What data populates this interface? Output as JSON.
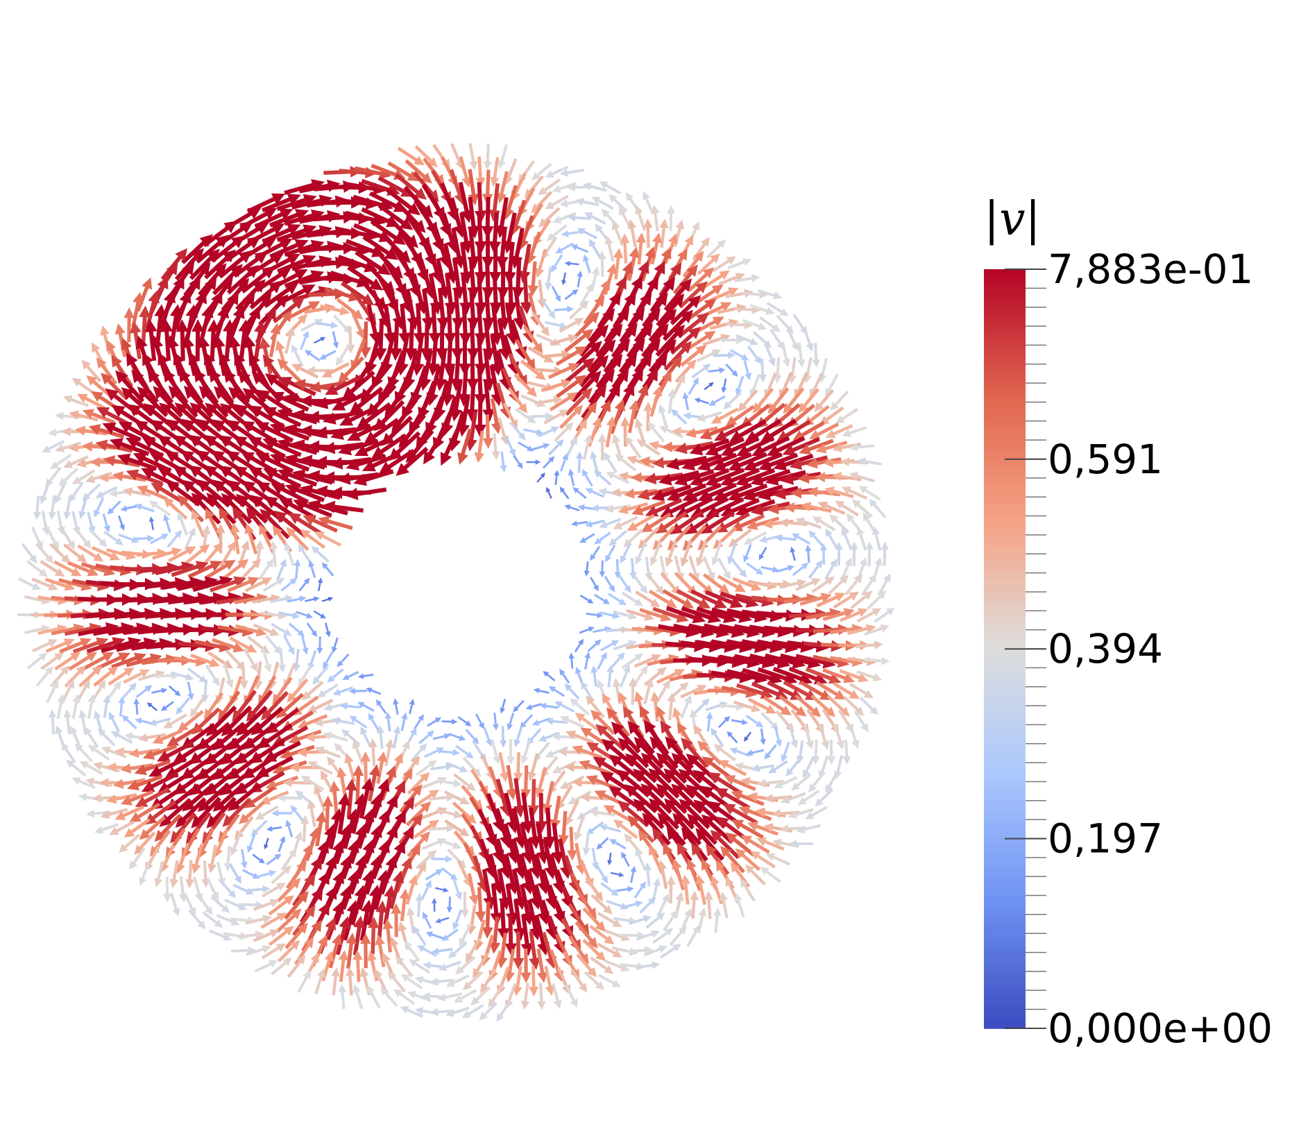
{
  "chart_data": {
    "type": "vector field",
    "colorbar": {
      "title": "|v|",
      "min": 0.0,
      "max": 0.7883,
      "tick_values": [
        0.7883,
        0.591,
        0.394,
        0.197,
        0.0
      ],
      "tick_labels": [
        "7,883e-01",
        "0,591",
        "0,394",
        "0,197",
        "0,000e+00"
      ],
      "colormap": "Cool to Warm",
      "colors": [
        "#3b4cc0",
        "#6f92f3",
        "#aac7fd",
        "#dddddd",
        "#f6a385",
        "#e0654f",
        "#b40426"
      ],
      "position": "right"
    },
    "field": {
      "vortex_count": 11,
      "vortex_arrangement": "ring",
      "max_speed": 0.7883
    }
  }
}
